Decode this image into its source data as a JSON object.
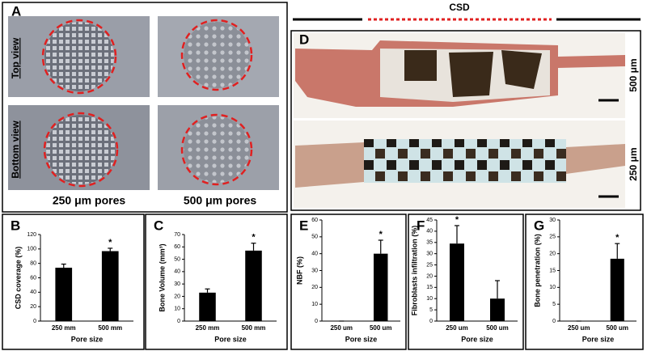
{
  "panel_a": {
    "label": "A",
    "row_labels": [
      "Top view",
      "Bottom view"
    ],
    "column_labels": [
      "250 μm pores",
      "500 μm pores"
    ]
  },
  "panel_d": {
    "header": "CSD",
    "label": "D",
    "row_labels": [
      "500 μm",
      "250 μm"
    ]
  },
  "chart_data": [
    {
      "type": "bar",
      "panel": "B",
      "ylabel": "CSD coverage (%)",
      "xlabel": "Pore size",
      "categories": [
        "250 mm",
        "500 mm"
      ],
      "values": [
        74,
        97
      ],
      "errors": [
        5,
        4
      ],
      "ylim": [
        0,
        120
      ],
      "yticks": [
        0,
        20,
        40,
        60,
        80,
        100,
        120
      ],
      "color": "#000000",
      "annotation": "*"
    },
    {
      "type": "bar",
      "panel": "C",
      "ylabel": "Bone Volume (mm³)",
      "xlabel": "Pore size",
      "categories": [
        "250 mm",
        "500 mm"
      ],
      "values": [
        23,
        57
      ],
      "errors": [
        3,
        6
      ],
      "ylim": [
        0,
        70
      ],
      "yticks": [
        0,
        10,
        20,
        30,
        40,
        50,
        60,
        70
      ],
      "color": "#000000",
      "annotation": "*"
    },
    {
      "type": "bar",
      "panel": "E",
      "ylabel": "NBF (%)",
      "xlabel": "Pore size",
      "categories": [
        "250 um",
        "500 um"
      ],
      "values": [
        0,
        40
      ],
      "errors": [
        0,
        8
      ],
      "ylim": [
        0,
        60
      ],
      "yticks": [
        0,
        10,
        20,
        30,
        40,
        50,
        60
      ],
      "color": "#000000",
      "annotation": "*"
    },
    {
      "type": "bar",
      "panel": "F",
      "ylabel": "Fibroblasts infiltration (%)",
      "xlabel": "Pore size",
      "categories": [
        "250 um",
        "500 um"
      ],
      "values": [
        34.5,
        10
      ],
      "errors": [
        8,
        8
      ],
      "ylim": [
        0,
        45
      ],
      "yticks": [
        0,
        5,
        10,
        15,
        20,
        25,
        30,
        35,
        40,
        45
      ],
      "color": "#000000",
      "annotation": "*"
    },
    {
      "type": "bar",
      "panel": "G",
      "ylabel": "Bone penetration (%)",
      "xlabel": "Pore size",
      "categories": [
        "250 um",
        "500 um"
      ],
      "values": [
        0,
        18.5
      ],
      "errors": [
        0,
        4.5
      ],
      "ylim": [
        0,
        30
      ],
      "yticks": [
        0,
        5,
        10,
        15,
        20,
        25,
        30
      ],
      "color": "#000000",
      "annotation": "*"
    }
  ]
}
